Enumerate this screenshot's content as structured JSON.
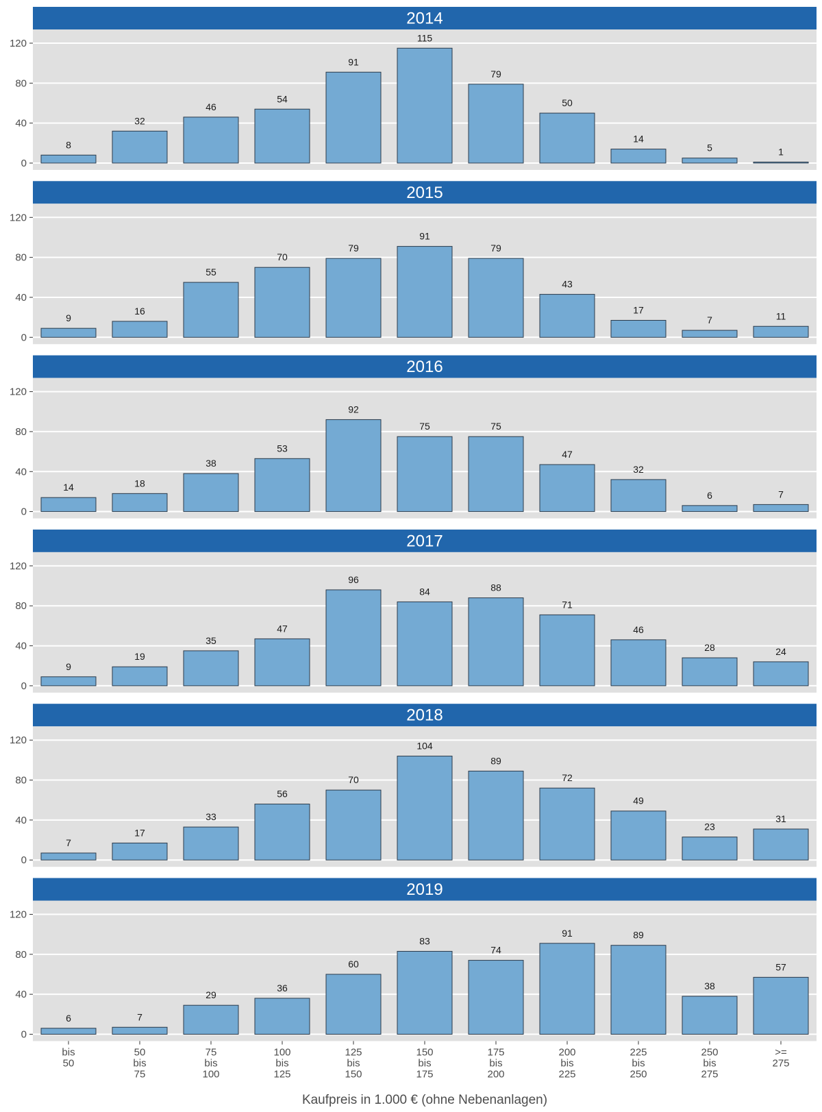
{
  "chart_data": {
    "type": "bar",
    "xlabel": "Kaufpreis in 1.000 € (ohne Nebenanlagen)",
    "ylabel": "",
    "ylim": [
      0,
      130
    ],
    "yticks": [
      0,
      40,
      80,
      120
    ],
    "grid": true,
    "categories": [
      [
        "bis",
        "50"
      ],
      [
        "50",
        "bis",
        "75"
      ],
      [
        "75",
        "bis",
        "100"
      ],
      [
        "100",
        "bis",
        "125"
      ],
      [
        "125",
        "bis",
        "150"
      ],
      [
        "150",
        "bis",
        "175"
      ],
      [
        "175",
        "bis",
        "200"
      ],
      [
        "200",
        "bis",
        "225"
      ],
      [
        "225",
        "bis",
        "250"
      ],
      [
        "250",
        "bis",
        "275"
      ],
      [
        ">=",
        "275"
      ]
    ],
    "panels": [
      {
        "title": "2014",
        "values": [
          8,
          32,
          46,
          54,
          91,
          115,
          79,
          50,
          14,
          5,
          1
        ]
      },
      {
        "title": "2015",
        "values": [
          9,
          16,
          55,
          70,
          79,
          91,
          79,
          43,
          17,
          7,
          11
        ]
      },
      {
        "title": "2016",
        "values": [
          14,
          18,
          38,
          53,
          92,
          75,
          75,
          47,
          32,
          6,
          7
        ]
      },
      {
        "title": "2017",
        "values": [
          9,
          19,
          35,
          47,
          96,
          84,
          88,
          71,
          46,
          28,
          24
        ]
      },
      {
        "title": "2018",
        "values": [
          7,
          17,
          33,
          56,
          70,
          104,
          89,
          72,
          49,
          23,
          31
        ]
      },
      {
        "title": "2019",
        "values": [
          6,
          7,
          29,
          36,
          60,
          83,
          74,
          91,
          89,
          38,
          57
        ]
      }
    ],
    "colors": {
      "bar_fill": "#74aad3",
      "bar_stroke": "#2b3a4a",
      "strip_fill": "#2166ac",
      "panel_bg": "#e0e0e0",
      "grid": "#ffffff"
    }
  }
}
